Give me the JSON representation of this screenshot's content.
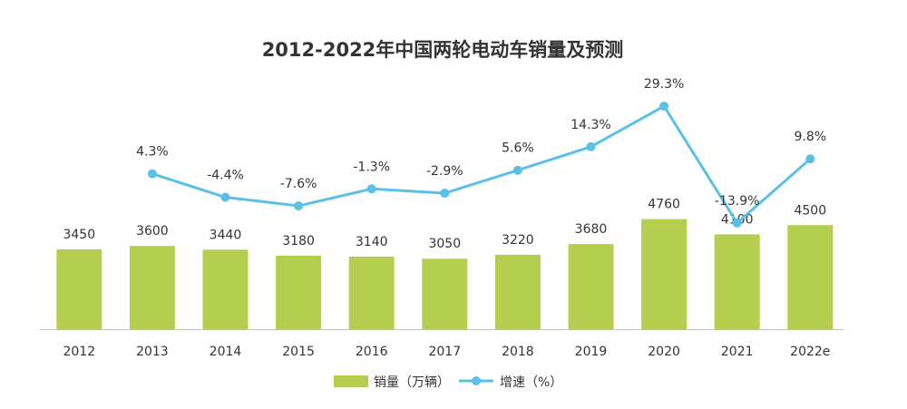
{
  "chart_data": {
    "type": "bar",
    "title": "2012-2022年中国两轮电动车销量及预测",
    "categories": [
      "2012",
      "2013",
      "2014",
      "2015",
      "2016",
      "2017",
      "2018",
      "2019",
      "2020",
      "2021",
      "2022e"
    ],
    "series": [
      {
        "name": "销量（万辆）",
        "type": "bar",
        "color": "#b4cf4f",
        "values": [
          3450,
          3600,
          3440,
          3180,
          3140,
          3050,
          3220,
          3680,
          4760,
          4100,
          4500
        ],
        "labels": [
          "3450",
          "3600",
          "3440",
          "3180",
          "3140",
          "3050",
          "3220",
          "3680",
          "4760",
          "4100",
          "4500"
        ]
      },
      {
        "name": "增速（%）",
        "type": "line",
        "color": "#5bc0e6",
        "values": [
          null,
          4.3,
          -4.4,
          -7.6,
          -1.3,
          -2.9,
          5.6,
          14.3,
          29.3,
          -13.9,
          9.8
        ],
        "labels": [
          "",
          "4.3%",
          "-4.4%",
          "-7.6%",
          "-1.3%",
          "-2.9%",
          "5.6%",
          "14.3%",
          "29.3%",
          "-13.9%",
          "9.8%"
        ]
      }
    ],
    "ylim_bars": [
      0,
      5000
    ],
    "ylim_line": [
      -60,
      40
    ],
    "legend_position": "bottom",
    "grid": false
  }
}
